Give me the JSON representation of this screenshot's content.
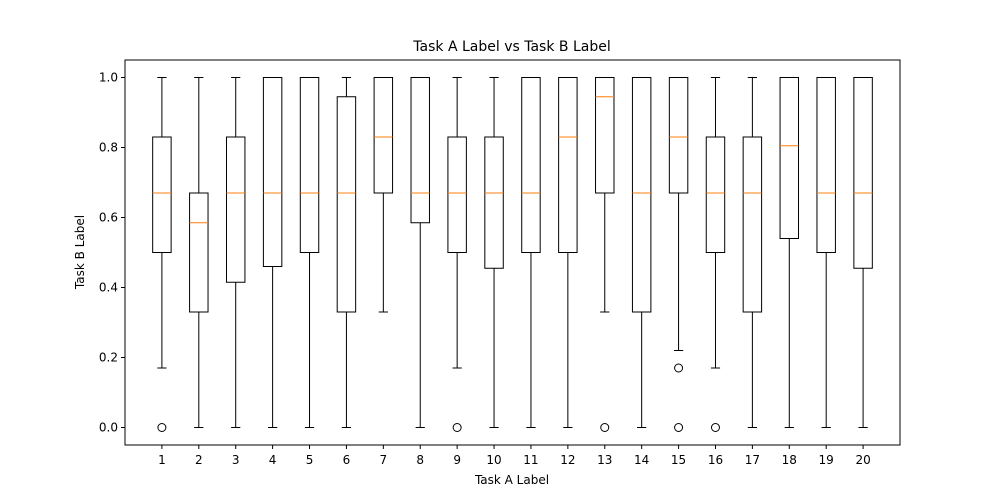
{
  "chart_data": {
    "type": "box",
    "title": "Task A Label vs Task B Label",
    "xlabel": "Task A Label",
    "ylabel": "Task B Label",
    "ylim": [
      -0.05,
      1.05
    ],
    "yticks": [
      "0.0",
      "0.2",
      "0.4",
      "0.6",
      "0.8",
      "1.0"
    ],
    "grid": false,
    "colors": {
      "box": "#000000",
      "median": "#ff7f0e",
      "flier": "#000000"
    },
    "boxes": [
      {
        "category": "1",
        "whisker_low": 0.17,
        "q1": 0.5,
        "median": 0.67,
        "q3": 0.83,
        "whisker_high": 1.0,
        "outliers": [
          0.0
        ]
      },
      {
        "category": "2",
        "whisker_low": 0.0,
        "q1": 0.33,
        "median": 0.585,
        "q3": 0.67,
        "whisker_high": 1.0,
        "outliers": []
      },
      {
        "category": "3",
        "whisker_low": 0.0,
        "q1": 0.415,
        "median": 0.67,
        "q3": 0.83,
        "whisker_high": 1.0,
        "outliers": []
      },
      {
        "category": "4",
        "whisker_low": 0.0,
        "q1": 0.46,
        "median": 0.67,
        "q3": 1.0,
        "whisker_high": 1.0,
        "outliers": []
      },
      {
        "category": "5",
        "whisker_low": 0.0,
        "q1": 0.5,
        "median": 0.67,
        "q3": 1.0,
        "whisker_high": 1.0,
        "outliers": []
      },
      {
        "category": "6",
        "whisker_low": 0.0,
        "q1": 0.33,
        "median": 0.67,
        "q3": 0.945,
        "whisker_high": 1.0,
        "outliers": []
      },
      {
        "category": "7",
        "whisker_low": 0.33,
        "q1": 0.67,
        "median": 0.83,
        "q3": 1.0,
        "whisker_high": 1.0,
        "outliers": []
      },
      {
        "category": "8",
        "whisker_low": 0.0,
        "q1": 0.585,
        "median": 0.67,
        "q3": 1.0,
        "whisker_high": 1.0,
        "outliers": []
      },
      {
        "category": "9",
        "whisker_low": 0.17,
        "q1": 0.5,
        "median": 0.67,
        "q3": 0.83,
        "whisker_high": 1.0,
        "outliers": [
          0.0
        ]
      },
      {
        "category": "10",
        "whisker_low": 0.0,
        "q1": 0.455,
        "median": 0.67,
        "q3": 0.83,
        "whisker_high": 1.0,
        "outliers": []
      },
      {
        "category": "11",
        "whisker_low": 0.0,
        "q1": 0.5,
        "median": 0.67,
        "q3": 1.0,
        "whisker_high": 1.0,
        "outliers": []
      },
      {
        "category": "12",
        "whisker_low": 0.0,
        "q1": 0.5,
        "median": 0.83,
        "q3": 1.0,
        "whisker_high": 1.0,
        "outliers": []
      },
      {
        "category": "13",
        "whisker_low": 0.33,
        "q1": 0.67,
        "median": 0.945,
        "q3": 1.0,
        "whisker_high": 1.0,
        "outliers": [
          0.0
        ]
      },
      {
        "category": "14",
        "whisker_low": 0.0,
        "q1": 0.33,
        "median": 0.67,
        "q3": 1.0,
        "whisker_high": 1.0,
        "outliers": []
      },
      {
        "category": "15",
        "whisker_low": 0.22,
        "q1": 0.67,
        "median": 0.83,
        "q3": 1.0,
        "whisker_high": 1.0,
        "outliers": [
          0.17,
          0.0
        ]
      },
      {
        "category": "16",
        "whisker_low": 0.17,
        "q1": 0.5,
        "median": 0.67,
        "q3": 0.83,
        "whisker_high": 1.0,
        "outliers": [
          0.0
        ]
      },
      {
        "category": "17",
        "whisker_low": 0.0,
        "q1": 0.33,
        "median": 0.67,
        "q3": 0.83,
        "whisker_high": 1.0,
        "outliers": []
      },
      {
        "category": "18",
        "whisker_low": 0.0,
        "q1": 0.54,
        "median": 0.805,
        "q3": 1.0,
        "whisker_high": 1.0,
        "outliers": []
      },
      {
        "category": "19",
        "whisker_low": 0.0,
        "q1": 0.5,
        "median": 0.67,
        "q3": 1.0,
        "whisker_high": 1.0,
        "outliers": []
      },
      {
        "category": "20",
        "whisker_low": 0.0,
        "q1": 0.455,
        "median": 0.67,
        "q3": 1.0,
        "whisker_high": 1.0,
        "outliers": []
      }
    ]
  }
}
